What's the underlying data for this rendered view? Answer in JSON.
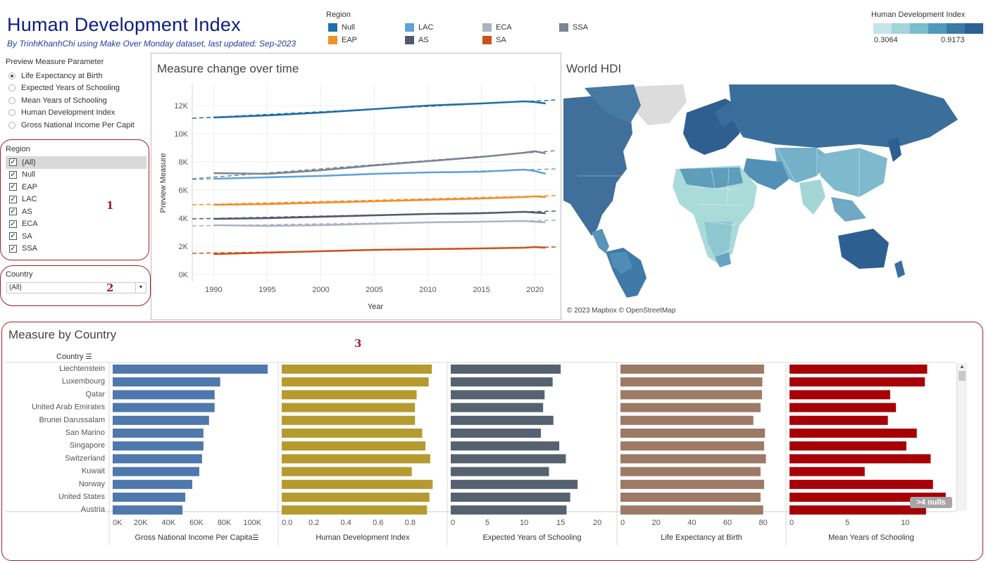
{
  "header": {
    "title": "Human Development Index",
    "subtitle": "By TrinhKhanhChi using Make Over Monday dataset, last updated: Sep-2023"
  },
  "region_legend": {
    "title": "Region",
    "items": [
      {
        "label": "Null",
        "color": "#1f6fa8"
      },
      {
        "label": "EAP",
        "color": "#f28e2b"
      },
      {
        "label": "LAC",
        "color": "#5fa2d8"
      },
      {
        "label": "AS",
        "color": "#4f5b6b"
      },
      {
        "label": "ECA",
        "color": "#a9b3c2"
      },
      {
        "label": "SA",
        "color": "#c9531c"
      },
      {
        "label": "SSA",
        "color": "#7b8494"
      }
    ]
  },
  "hdi_legend": {
    "title": "Human Development Index",
    "min": "0.3064",
    "max": "0.9173",
    "colors": [
      "#c4e6e6",
      "#a2d4d9",
      "#79bccb",
      "#4e99bb",
      "#3b79a6",
      "#2d5f91"
    ]
  },
  "parameter": {
    "title": "Preview Measure Parameter",
    "options": [
      {
        "label": "Life Expectancy at Birth",
        "selected": true
      },
      {
        "label": "Expected Years of Schooling",
        "selected": false
      },
      {
        "label": "Mean Years of Schooling",
        "selected": false
      },
      {
        "label": "Human Development Index",
        "selected": false
      },
      {
        "label": "Gross National Income Per Capit",
        "selected": false
      }
    ]
  },
  "region_filter": {
    "title": "Region",
    "options": [
      "(All)",
      "Null",
      "EAP",
      "LAC",
      "AS",
      "ECA",
      "SA",
      "SSA"
    ]
  },
  "country_filter": {
    "title": "Country",
    "value": "(All)"
  },
  "annotations": {
    "one": "1",
    "two": "2",
    "three": "3"
  },
  "line_chart": {
    "title": "Measure change over time"
  },
  "map": {
    "title": "World HDI",
    "credit": "© 2023 Mapbox © OpenStreetMap"
  },
  "bar_section": {
    "title": "Measure by Country",
    "column_header": "Country",
    "nulls_badge": ">4 nulls"
  },
  "chart_data": [
    {
      "type": "line",
      "title": "Measure change over time",
      "xlabel": "Year",
      "ylabel": "Preview Measure",
      "xlim": [
        1988,
        2022
      ],
      "ylim": [
        -500,
        13500
      ],
      "x_ticks": [
        1990,
        1995,
        2000,
        2005,
        2010,
        2015,
        2020
      ],
      "y_ticks": [
        0,
        2000,
        4000,
        6000,
        8000,
        10000,
        12000
      ],
      "y_tick_labels": [
        "0K",
        "2K",
        "4K",
        "6K",
        "8K",
        "10K",
        "12K"
      ],
      "x": [
        1990,
        1995,
        2000,
        2005,
        2010,
        2015,
        2019,
        2020,
        2021
      ],
      "series": [
        {
          "name": "Null",
          "color": "#1f6fa8",
          "values": [
            11150,
            11300,
            11500,
            11750,
            12000,
            12150,
            12300,
            12250,
            12150
          ],
          "trend": [
            11100,
            12400
          ]
        },
        {
          "name": "SSA",
          "color": "#7b8494",
          "values": [
            7200,
            7150,
            7400,
            7750,
            8050,
            8350,
            8650,
            8750,
            8600
          ],
          "trend": [
            6800,
            8800
          ]
        },
        {
          "name": "LAC",
          "color": "#5fa2d8",
          "values": [
            6800,
            6900,
            7000,
            7150,
            7250,
            7300,
            7450,
            7350,
            7150
          ],
          "trend": [
            6750,
            7500
          ]
        },
        {
          "name": "EAP",
          "color": "#f28e2b",
          "values": [
            4950,
            5000,
            5100,
            5200,
            5300,
            5400,
            5500,
            5550,
            5500
          ],
          "trend": [
            4950,
            5600
          ]
        },
        {
          "name": "AS",
          "color": "#4f5b6b",
          "values": [
            3950,
            4000,
            4100,
            4200,
            4300,
            4350,
            4450,
            4400,
            4350
          ],
          "trend": [
            3950,
            4500
          ]
        },
        {
          "name": "ECA",
          "color": "#a9b3c2",
          "values": [
            3500,
            3450,
            3500,
            3600,
            3700,
            3750,
            3800,
            3750,
            3700
          ],
          "trend": [
            3450,
            3850
          ]
        },
        {
          "name": "SA",
          "color": "#c9531c",
          "values": [
            1450,
            1550,
            1650,
            1750,
            1800,
            1850,
            1900,
            1950,
            1900
          ],
          "trend": [
            1500,
            1950
          ]
        }
      ],
      "x_trend": [
        1988,
        2022
      ]
    },
    {
      "type": "bar",
      "title": "Measure by Country",
      "categories": [
        "Liechtenstein",
        "Luxembourg",
        "Qatar",
        "United Arab Emirates",
        "Brunei Darussalam",
        "San Marino",
        "Singapore",
        "Switzerland",
        "Kuwait",
        "Norway",
        "United States",
        "Austria"
      ],
      "series": [
        {
          "name": "Gross National Income Per Capita",
          "color": "#4f78ac",
          "max": 115000,
          "ticks": [
            0,
            20000,
            40000,
            60000,
            80000,
            100000
          ],
          "tick_labels": [
            "0K",
            "20K",
            "40K",
            "60K",
            "80K",
            "100K"
          ],
          "values": [
            111000,
            77000,
            73000,
            73000,
            69000,
            65000,
            65000,
            64000,
            62000,
            57000,
            52000,
            50000
          ]
        },
        {
          "name": "Human Development Index",
          "color": "#b59a2f",
          "max": 1.0,
          "ticks": [
            0,
            0.2,
            0.4,
            0.6,
            0.8
          ],
          "tick_labels": [
            "0.0",
            "0.2",
            "0.4",
            "0.6",
            "0.8"
          ],
          "values": [
            0.935,
            0.915,
            0.84,
            0.83,
            0.83,
            0.875,
            0.895,
            0.925,
            0.81,
            0.94,
            0.92,
            0.905
          ]
        },
        {
          "name": "Expected Years of Schooling",
          "color": "#566270",
          "max": 22,
          "ticks": [
            0,
            5,
            10,
            15,
            20
          ],
          "tick_labels": [
            "0",
            "5",
            "10",
            "15",
            "20"
          ],
          "values": [
            15.0,
            13.9,
            12.8,
            12.6,
            14.0,
            12.3,
            14.8,
            15.7,
            13.4,
            17.3,
            16.3,
            15.8
          ]
        },
        {
          "name": "Life Expectancy at Birth",
          "color": "#9c7a65",
          "max": 90,
          "ticks": [
            0,
            20,
            40,
            60,
            80
          ],
          "tick_labels": [
            "0",
            "20",
            "40",
            "60",
            "80"
          ],
          "values": [
            80.5,
            79.5,
            79.3,
            78.5,
            74.5,
            81.0,
            80.5,
            81.5,
            78.5,
            80.5,
            78.5,
            80.0
          ]
        },
        {
          "name": "Mean Years of Schooling",
          "color": "#a60006",
          "max": 14,
          "ticks": [
            0,
            5,
            10
          ],
          "tick_labels": [
            "0",
            "5",
            "10"
          ],
          "values": [
            11.9,
            11.7,
            8.7,
            9.2,
            8.5,
            11.0,
            10.1,
            12.2,
            6.5,
            12.4,
            13.5,
            11.8
          ]
        }
      ]
    }
  ]
}
